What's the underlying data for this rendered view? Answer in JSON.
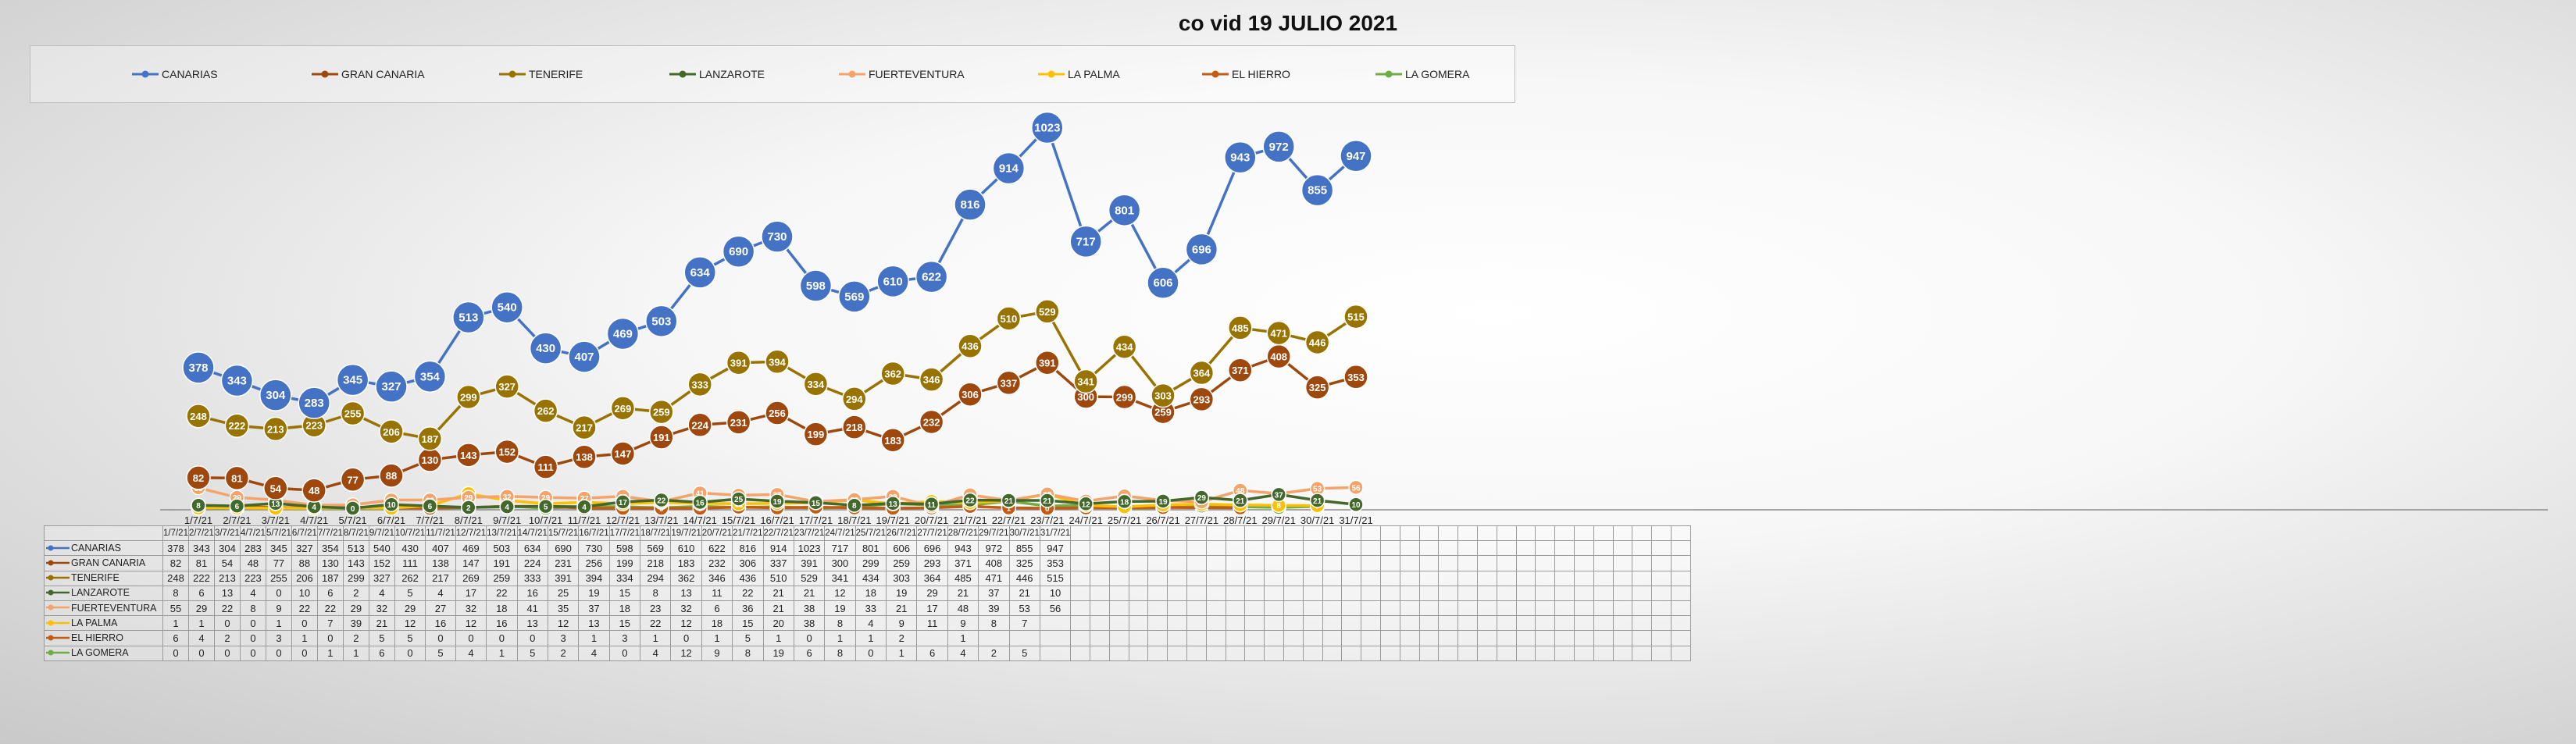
{
  "title": "co vid 19 JULIO 2021",
  "colors": {
    "CANARIAS": "#4472C4",
    "GRAN CANARIA": "#9E480E",
    "TENERIFE": "#997300",
    "LANZAROTE": "#43682B",
    "FUERTEVENTURA": "#F4A46A",
    "LA PALMA": "#FFC000",
    "EL HIERRO": "#C55A11",
    "LA GOMERA": "#70AD47"
  },
  "chart_data": {
    "type": "line",
    "title": "co vid 19 JULIO 2021",
    "legend_position": "top-left",
    "categories": [
      "1/7/21",
      "2/7/21",
      "3/7/21",
      "4/7/21",
      "5/7/21",
      "6/7/21",
      "7/7/21",
      "8/7/21",
      "9/7/21",
      "10/7/21",
      "11/7/21",
      "12/7/21",
      "13/7/21",
      "14/7/21",
      "15/7/21",
      "16/7/21",
      "17/7/21",
      "18/7/21",
      "19/7/21",
      "20/7/21",
      "21/7/21",
      "22/7/21",
      "23/7/21",
      "24/7/21",
      "25/7/21",
      "26/7/21",
      "27/7/21",
      "28/7/21",
      "29/7/21",
      "30/7/21",
      "31/7/21"
    ],
    "ylim": [
      0,
      1100
    ],
    "series": [
      {
        "name": "CANARIAS",
        "values": [
          378,
          343,
          304,
          283,
          345,
          327,
          354,
          513,
          540,
          430,
          407,
          469,
          503,
          634,
          690,
          730,
          598,
          569,
          610,
          622,
          816,
          914,
          1023,
          717,
          801,
          606,
          696,
          943,
          972,
          855,
          947
        ]
      },
      {
        "name": "GRAN CANARIA",
        "values": [
          82,
          81,
          54,
          48,
          77,
          88,
          130,
          143,
          152,
          111,
          138,
          147,
          191,
          224,
          231,
          256,
          199,
          218,
          183,
          232,
          306,
          337,
          391,
          300,
          299,
          259,
          293,
          371,
          408,
          325,
          353
        ]
      },
      {
        "name": "TENERIFE",
        "values": [
          248,
          222,
          213,
          223,
          255,
          206,
          187,
          299,
          327,
          262,
          217,
          269,
          259,
          333,
          391,
          394,
          334,
          294,
          362,
          346,
          436,
          510,
          529,
          341,
          434,
          303,
          364,
          485,
          471,
          446,
          515
        ]
      },
      {
        "name": "LANZAROTE",
        "values": [
          8,
          6,
          13,
          4,
          0,
          10,
          6,
          2,
          4,
          5,
          4,
          17,
          22,
          16,
          25,
          19,
          15,
          8,
          13,
          11,
          22,
          21,
          21,
          12,
          18,
          19,
          29,
          21,
          37,
          21,
          10
        ]
      },
      {
        "name": "FUERTEVENTURA",
        "values": [
          55,
          29,
          22,
          8,
          9,
          22,
          22,
          29,
          32,
          29,
          27,
          32,
          18,
          41,
          35,
          37,
          18,
          23,
          32,
          6,
          36,
          21,
          38,
          19,
          33,
          21,
          17,
          48,
          39,
          53,
          56
        ]
      },
      {
        "name": "LA PALMA",
        "values": [
          1,
          1,
          0,
          0,
          1,
          0,
          7,
          39,
          21,
          12,
          16,
          12,
          16,
          13,
          12,
          13,
          15,
          22,
          12,
          18,
          15,
          20,
          38,
          8,
          4,
          9,
          11,
          9,
          8,
          7,
          null
        ]
      },
      {
        "name": "EL HIERRO",
        "values": [
          6,
          4,
          2,
          0,
          3,
          1,
          0,
          2,
          5,
          5,
          0,
          0,
          0,
          0,
          3,
          1,
          3,
          1,
          0,
          1,
          5,
          1,
          0,
          1,
          1,
          2,
          null,
          1,
          null,
          null,
          null
        ]
      },
      {
        "name": "LA GOMERA",
        "values": [
          0,
          0,
          0,
          0,
          0,
          0,
          1,
          1,
          6,
          0,
          5,
          4,
          1,
          5,
          2,
          4,
          0,
          4,
          12,
          9,
          8,
          19,
          6,
          8,
          0,
          1,
          6,
          4,
          2,
          5,
          null
        ]
      }
    ]
  },
  "table": {
    "header": [
      "1/7/21",
      "2/7/21",
      "3/7/21",
      "4/7/21",
      "5/7/21",
      "6/7/21",
      "7/7/21",
      "8/7/21",
      "9/7/21",
      "10/7/21",
      "11/7/21",
      "12/7/21",
      "13/7/21",
      "14/7/21",
      "15/7/21",
      "16/7/21",
      "17/7/21",
      "18/7/21",
      "19/7/21",
      "20/7/21",
      "21/7/21",
      "22/7/21",
      "23/7/21",
      "24/7/21",
      "25/7/21",
      "26/7/21",
      "27/7/21",
      "28/7/21",
      "29/7/21",
      "30/7/21",
      "31/7/21"
    ],
    "rows": [
      {
        "name": "CANARIAS",
        "values": [
          "378",
          "343",
          "304",
          "283",
          "345",
          "327",
          "354",
          "513",
          "540",
          "430",
          "407",
          "469",
          "503",
          "634",
          "690",
          "730",
          "598",
          "569",
          "610",
          "622",
          "816",
          "914",
          "1023",
          "717",
          "801",
          "606",
          "696",
          "943",
          "972",
          "855",
          "947"
        ]
      },
      {
        "name": "GRAN CANARIA",
        "values": [
          "82",
          "81",
          "54",
          "48",
          "77",
          "88",
          "130",
          "143",
          "152",
          "111",
          "138",
          "147",
          "191",
          "224",
          "231",
          "256",
          "199",
          "218",
          "183",
          "232",
          "306",
          "337",
          "391",
          "300",
          "299",
          "259",
          "293",
          "371",
          "408",
          "325",
          "353"
        ]
      },
      {
        "name": "TENERIFE",
        "values": [
          "248",
          "222",
          "213",
          "223",
          "255",
          "206",
          "187",
          "299",
          "327",
          "262",
          "217",
          "269",
          "259",
          "333",
          "391",
          "394",
          "334",
          "294",
          "362",
          "346",
          "436",
          "510",
          "529",
          "341",
          "434",
          "303",
          "364",
          "485",
          "471",
          "446",
          "515"
        ]
      },
      {
        "name": "LANZAROTE",
        "values": [
          "8",
          "6",
          "13",
          "4",
          "0",
          "10",
          "6",
          "2",
          "4",
          "5",
          "4",
          "17",
          "22",
          "16",
          "25",
          "19",
          "15",
          "8",
          "13",
          "11",
          "22",
          "21",
          "21",
          "12",
          "18",
          "19",
          "29",
          "21",
          "37",
          "21",
          "10"
        ]
      },
      {
        "name": "FUERTEVENTURA",
        "values": [
          "55",
          "29",
          "22",
          "8",
          "9",
          "22",
          "22",
          "29",
          "32",
          "29",
          "27",
          "32",
          "18",
          "41",
          "35",
          "37",
          "18",
          "23",
          "32",
          "6",
          "36",
          "21",
          "38",
          "19",
          "33",
          "21",
          "17",
          "48",
          "39",
          "53",
          "56"
        ]
      },
      {
        "name": "LA PALMA",
        "values": [
          "1",
          "1",
          "0",
          "0",
          "1",
          "0",
          "7",
          "39",
          "21",
          "12",
          "16",
          "12",
          "16",
          "13",
          "12",
          "13",
          "15",
          "22",
          "12",
          "18",
          "15",
          "20",
          "38",
          "8",
          "4",
          "9",
          "11",
          "9",
          "8",
          "7",
          ""
        ]
      },
      {
        "name": "EL HIERRO",
        "values": [
          "6",
          "4",
          "2",
          "0",
          "3",
          "1",
          "0",
          "2",
          "5",
          "5",
          "0",
          "0",
          "0",
          "0",
          "3",
          "1",
          "3",
          "1",
          "0",
          "1",
          "5",
          "1",
          "0",
          "1",
          "1",
          "2",
          "",
          "1",
          "",
          "",
          ""
        ]
      },
      {
        "name": "LA GOMERA",
        "values": [
          "0",
          "0",
          "0",
          "0",
          "0",
          "0",
          "1",
          "1",
          "6",
          "0",
          "5",
          "4",
          "1",
          "5",
          "2",
          "4",
          "0",
          "4",
          "12",
          "9",
          "8",
          "19",
          "6",
          "8",
          "0",
          "1",
          "6",
          "4",
          "2",
          "5",
          ""
        ]
      }
    ]
  }
}
